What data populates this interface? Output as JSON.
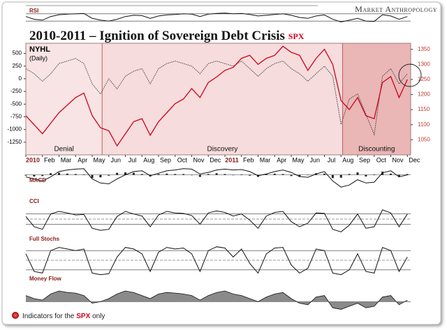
{
  "header": {
    "brand": "Market Anthropology"
  },
  "footer": {
    "before": "Indicators for the",
    "highlight": "SPX",
    "after": "only"
  },
  "chart_data": [
    {
      "type": "line",
      "title": "2010-2011 – Ignition of Sovereign Debt Crisis",
      "label": "NYHL",
      "sublabel": "(Daily)",
      "xlim": [
        0,
        23.2
      ],
      "xticks": [
        {
          "value": 0,
          "label": "2010"
        },
        {
          "value": 1,
          "label": "Feb"
        },
        {
          "value": 2,
          "label": "Mar"
        },
        {
          "value": 3,
          "label": "Apr"
        },
        {
          "value": 4,
          "label": "May"
        },
        {
          "value": 5,
          "label": "Jun"
        },
        {
          "value": 6,
          "label": "Jul"
        },
        {
          "value": 7,
          "label": "Aug"
        },
        {
          "value": 8,
          "label": "Sep"
        },
        {
          "value": 9,
          "label": "Oct"
        },
        {
          "value": 10,
          "label": "Nov"
        },
        {
          "value": 11,
          "label": "Dec"
        },
        {
          "value": 12,
          "label": "2011"
        },
        {
          "value": 13,
          "label": "Feb"
        },
        {
          "value": 14,
          "label": "Mar"
        },
        {
          "value": 15,
          "label": "Apr"
        },
        {
          "value": 16,
          "label": "May"
        },
        {
          "value": 17,
          "label": "Jun"
        },
        {
          "value": 18,
          "label": "Jul"
        },
        {
          "value": 19,
          "label": "Aug"
        },
        {
          "value": 20,
          "label": "Sep"
        },
        {
          "value": 21,
          "label": "Oct"
        },
        {
          "value": 22,
          "label": "Nov"
        },
        {
          "value": 23,
          "label": "Dec"
        }
      ],
      "ylim": [
        -1500,
        700
      ],
      "yticks": [
        500,
        250,
        0,
        -250,
        -500,
        -750,
        -1000,
        -1250
      ],
      "y2lim": [
        1000,
        1370
      ],
      "y2ticks": [
        1350,
        1300,
        1250,
        1200,
        1150,
        1100,
        1050
      ],
      "phases": [
        {
          "label": "Denial",
          "x": [
            0,
            4.6
          ],
          "color": "#f8e4e4"
        },
        {
          "label": "Discovery",
          "x": [
            4.6,
            19.1
          ],
          "color": "#f6dcdc"
        },
        {
          "label": "Discounting",
          "x": [
            19.1,
            23.2
          ],
          "color": "#eab6b6"
        }
      ],
      "x": [
        0,
        0.5,
        1,
        1.5,
        2,
        2.5,
        3,
        3.5,
        4,
        4.5,
        5,
        5.5,
        6,
        6.5,
        7,
        7.5,
        8,
        8.5,
        9,
        9.5,
        10,
        10.5,
        11,
        11.5,
        12,
        12.5,
        13,
        13.5,
        14,
        14.5,
        15,
        15.5,
        16,
        16.5,
        17,
        17.5,
        18,
        18.5,
        19,
        19.5,
        20,
        20.5,
        21,
        21.5,
        22,
        22.5,
        23
      ],
      "series": [
        {
          "name": "NYHL",
          "color": "#444444",
          "dash": true,
          "values": [
            200,
            100,
            -50,
            100,
            300,
            350,
            400,
            300,
            -100,
            -300,
            0,
            -200,
            50,
            150,
            200,
            -100,
            200,
            300,
            350,
            300,
            250,
            100,
            300,
            350,
            300,
            250,
            350,
            200,
            50,
            200,
            300,
            350,
            200,
            100,
            -50,
            100,
            250,
            50,
            -900,
            -400,
            -300,
            -700,
            -1100,
            50,
            200,
            -100,
            100
          ]
        },
        {
          "name": "SPX",
          "color": "#d0021b",
          "axis": "y2",
          "values": [
            1130,
            1100,
            1070,
            1105,
            1140,
            1165,
            1190,
            1205,
            1130,
            1090,
            1080,
            1030,
            1070,
            1110,
            1120,
            1065,
            1110,
            1140,
            1170,
            1185,
            1220,
            1190,
            1240,
            1258,
            1280,
            1290,
            1320,
            1330,
            1300,
            1320,
            1330,
            1360,
            1340,
            1330,
            1280,
            1320,
            1350,
            1300,
            1180,
            1150,
            1190,
            1130,
            1120,
            1240,
            1260,
            1190,
            1250
          ]
        }
      ]
    },
    {
      "type": "line",
      "title": "RSI",
      "ylim": [
        0,
        100
      ],
      "ref_lines": [
        70,
        30
      ],
      "x": [
        0,
        0.5,
        1,
        1.5,
        2,
        2.5,
        3,
        3.5,
        4,
        4.5,
        5,
        5.5,
        6,
        6.5,
        7,
        7.5,
        8,
        8.5,
        9,
        9.5,
        10,
        10.5,
        11,
        11.5,
        12,
        12.5,
        13,
        13.5,
        14,
        14.5,
        15,
        15.5,
        16,
        16.5,
        17,
        17.5,
        18,
        18.5,
        19,
        19.5,
        20,
        20.5,
        21,
        21.5,
        22,
        22.5,
        23
      ],
      "values": [
        55,
        40,
        35,
        55,
        65,
        68,
        70,
        72,
        45,
        35,
        30,
        40,
        55,
        62,
        60,
        45,
        58,
        64,
        66,
        70,
        68,
        55,
        68,
        72,
        74,
        70,
        72,
        66,
        58,
        62,
        66,
        70,
        62,
        50,
        45,
        58,
        64,
        40,
        25,
        35,
        45,
        30,
        28,
        65,
        58,
        40,
        55
      ]
    },
    {
      "type": "line",
      "title": "MACD",
      "ylim": [
        -40,
        25
      ],
      "ref_lines": [
        0
      ],
      "x": [
        0,
        0.5,
        1,
        1.5,
        2,
        2.5,
        3,
        3.5,
        4,
        4.5,
        5,
        5.5,
        6,
        6.5,
        7,
        7.5,
        8,
        8.5,
        9,
        9.5,
        10,
        10.5,
        11,
        11.5,
        12,
        12.5,
        13,
        13.5,
        14,
        14.5,
        15,
        15.5,
        16,
        16.5,
        17,
        17.5,
        18,
        18.5,
        19,
        19.5,
        20,
        20.5,
        21,
        21.5,
        22,
        22.5,
        23
      ],
      "values": [
        -5,
        -10,
        -15,
        -5,
        8,
        12,
        14,
        15,
        -10,
        -20,
        -22,
        -10,
        0,
        8,
        10,
        -2,
        4,
        10,
        12,
        15,
        14,
        2,
        6,
        12,
        14,
        12,
        13,
        8,
        -2,
        2,
        8,
        12,
        6,
        -4,
        -6,
        2,
        8,
        -15,
        -30,
        -25,
        -12,
        -20,
        -18,
        5,
        10,
        -5,
        0
      ],
      "histogram": [
        -2,
        -4,
        -3,
        4,
        5,
        3,
        2,
        1,
        -8,
        -6,
        -2,
        5,
        6,
        5,
        2,
        -4,
        2,
        3,
        2,
        2,
        -1,
        -5,
        2,
        4,
        2,
        -1,
        1,
        -2,
        -5,
        2,
        3,
        2,
        -3,
        -5,
        -1,
        4,
        3,
        -8,
        -7,
        2,
        6,
        -4,
        1,
        8,
        3,
        -5,
        2
      ]
    },
    {
      "type": "line",
      "title": "CCI",
      "ylim": [
        -300,
        300
      ],
      "ref_lines": [
        100,
        0,
        -100
      ],
      "x": [
        0,
        0.5,
        1,
        1.5,
        2,
        2.5,
        3,
        3.5,
        4,
        4.5,
        5,
        5.5,
        6,
        6.5,
        7,
        7.5,
        8,
        8.5,
        9,
        9.5,
        10,
        10.5,
        11,
        11.5,
        12,
        12.5,
        13,
        13.5,
        14,
        14.5,
        15,
        15.5,
        16,
        16.5,
        17,
        17.5,
        18,
        18.5,
        19,
        19.5,
        20,
        20.5,
        21,
        21.5,
        22,
        22.5,
        23
      ],
      "values": [
        50,
        -150,
        -200,
        100,
        150,
        120,
        80,
        90,
        -180,
        -220,
        -200,
        50,
        150,
        100,
        60,
        -150,
        80,
        150,
        120,
        110,
        70,
        -100,
        120,
        160,
        130,
        60,
        100,
        -20,
        -180,
        60,
        130,
        150,
        -50,
        -150,
        -80,
        120,
        110,
        -200,
        -250,
        -120,
        100,
        -180,
        -150,
        180,
        120,
        -150,
        100
      ]
    },
    {
      "type": "line",
      "title": "Full Stochs",
      "ylim": [
        0,
        100
      ],
      "ref_lines": [
        80,
        50,
        20
      ],
      "x": [
        0,
        0.5,
        1,
        1.5,
        2,
        2.5,
        3,
        3.5,
        4,
        4.5,
        5,
        5.5,
        6,
        6.5,
        7,
        7.5,
        8,
        8.5,
        9,
        9.5,
        10,
        10.5,
        11,
        11.5,
        12,
        12.5,
        13,
        13.5,
        14,
        14.5,
        15,
        15.5,
        16,
        16.5,
        17,
        17.5,
        18,
        18.5,
        19,
        19.5,
        20,
        20.5,
        21,
        21.5,
        22,
        22.5,
        23
      ],
      "values": [
        70,
        15,
        10,
        80,
        90,
        85,
        80,
        85,
        10,
        5,
        8,
        60,
        90,
        85,
        70,
        15,
        75,
        90,
        85,
        88,
        70,
        15,
        80,
        92,
        88,
        60,
        85,
        40,
        10,
        70,
        88,
        90,
        35,
        10,
        25,
        85,
        80,
        10,
        5,
        20,
        70,
        15,
        10,
        90,
        80,
        15,
        60
      ]
    },
    {
      "type": "area",
      "title": "Money Flow",
      "ylim": [
        -40,
        60
      ],
      "ref_lines": [
        0
      ],
      "x": [
        0,
        0.5,
        1,
        1.5,
        2,
        2.5,
        3,
        3.5,
        4,
        4.5,
        5,
        5.5,
        6,
        6.5,
        7,
        7.5,
        8,
        8.5,
        9,
        9.5,
        10,
        10.5,
        11,
        11.5,
        12,
        12.5,
        13,
        13.5,
        14,
        14.5,
        15,
        15.5,
        16,
        16.5,
        17,
        17.5,
        18,
        18.5,
        19,
        19.5,
        20,
        20.5,
        21,
        21.5,
        22,
        22.5,
        23
      ],
      "values": [
        20,
        10,
        5,
        25,
        35,
        30,
        28,
        20,
        -5,
        0,
        10,
        25,
        35,
        30,
        20,
        10,
        25,
        30,
        28,
        25,
        20,
        5,
        20,
        30,
        35,
        25,
        20,
        10,
        0,
        15,
        25,
        30,
        10,
        -5,
        -10,
        15,
        20,
        -20,
        -25,
        -15,
        -5,
        -20,
        -15,
        15,
        20,
        -10,
        5
      ]
    }
  ]
}
